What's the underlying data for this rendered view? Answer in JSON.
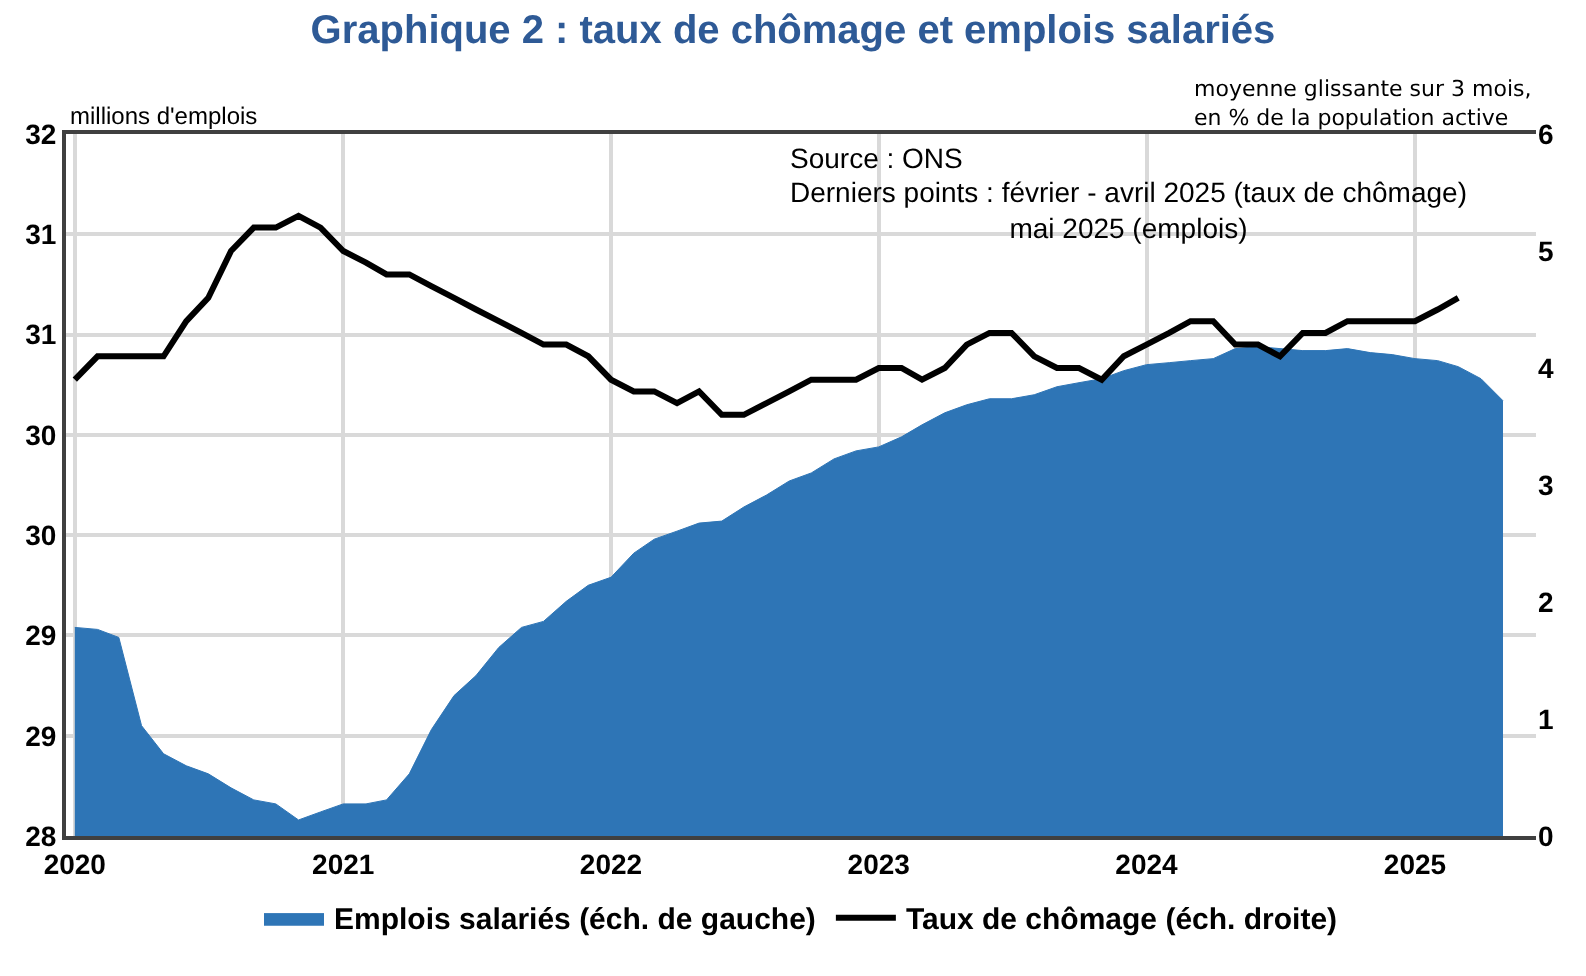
{
  "chart_data": {
    "type": "area",
    "title": "Graphique 2 : taux de chômage et emplois salariés",
    "ylabel": "millions d'emplois",
    "y2label": "moyenne glissante sur 3 mois,\nen % de la population active",
    "annotations": [
      "Source : ONS",
      "Derniers points : février - avril 2025 (taux de chômage)\nmai 2025 (emplois)"
    ],
    "x": [
      "2020-01",
      "2020-02",
      "2020-03",
      "2020-04",
      "2020-05",
      "2020-06",
      "2020-07",
      "2020-08",
      "2020-09",
      "2020-10",
      "2020-11",
      "2020-12",
      "2021-01",
      "2021-02",
      "2021-03",
      "2021-04",
      "2021-05",
      "2021-06",
      "2021-07",
      "2021-08",
      "2021-09",
      "2021-10",
      "2021-11",
      "2021-12",
      "2022-01",
      "2022-02",
      "2022-03",
      "2022-04",
      "2022-05",
      "2022-06",
      "2022-07",
      "2022-08",
      "2022-09",
      "2022-10",
      "2022-11",
      "2022-12",
      "2023-01",
      "2023-02",
      "2023-03",
      "2023-04",
      "2023-05",
      "2023-06",
      "2023-07",
      "2023-08",
      "2023-09",
      "2023-10",
      "2023-11",
      "2023-12",
      "2024-01",
      "2024-02",
      "2024-03",
      "2024-04",
      "2024-05",
      "2024-06",
      "2024-07",
      "2024-08",
      "2024-09",
      "2024-10",
      "2024-11",
      "2024-12",
      "2025-01",
      "2025-02",
      "2025-03",
      "2025-04",
      "2025-05"
    ],
    "series": [
      {
        "name": "Emplois salariés (éch. de gauche)",
        "color": "#2e75b6",
        "values": [
          29.04,
          29.03,
          28.99,
          28.55,
          28.41,
          28.35,
          28.31,
          28.24,
          28.18,
          28.16,
          28.08,
          28.12,
          28.16,
          28.16,
          28.18,
          28.31,
          28.53,
          28.7,
          28.8,
          28.94,
          29.04,
          29.07,
          29.17,
          29.25,
          29.29,
          29.41,
          29.48,
          29.52,
          29.56,
          29.57,
          29.64,
          29.7,
          29.77,
          29.81,
          29.88,
          29.92,
          29.94,
          29.99,
          30.05,
          30.11,
          30.15,
          30.18,
          30.18,
          30.2,
          30.24,
          30.26,
          30.28,
          30.32,
          30.35,
          30.36,
          30.37,
          30.38,
          30.43,
          30.44,
          30.43,
          30.42,
          30.42,
          30.43,
          30.41,
          30.4,
          30.38,
          30.37,
          30.34,
          30.28,
          30.17
        ]
      },
      {
        "name": "Taux de chômage (éch. droite)",
        "type": "line",
        "axis": "y2",
        "color": "#000000",
        "values": [
          3.9,
          4.1,
          4.1,
          4.1,
          4.1,
          4.4,
          4.6,
          5.0,
          5.2,
          5.2,
          5.3,
          5.2,
          5.0,
          4.9,
          4.8,
          4.8,
          4.7,
          4.6,
          4.5,
          4.4,
          4.3,
          4.2,
          4.2,
          4.1,
          3.9,
          3.8,
          3.8,
          3.7,
          3.8,
          3.6,
          3.6,
          3.7,
          3.8,
          3.9,
          3.9,
          3.9,
          4.0,
          4.0,
          3.9,
          4.0,
          4.2,
          4.3,
          4.3,
          4.1,
          4.0,
          4.0,
          3.9,
          4.1,
          4.2,
          4.3,
          4.4,
          4.4,
          4.2,
          4.2,
          4.1,
          4.3,
          4.3,
          4.4,
          4.4,
          4.4,
          4.4,
          4.5,
          4.6,
          null,
          null
        ]
      }
    ],
    "xlim": [
      "2019-12-20",
      "2025-06-15"
    ],
    "xticks": [
      "2020",
      "2021",
      "2022",
      "2023",
      "2024",
      "2025"
    ],
    "ylim": [
      28,
      31.5
    ],
    "yticks": [
      {
        "value": 28,
        "label": "28"
      },
      {
        "value": 28.5,
        "label": "29"
      },
      {
        "value": 29,
        "label": "29"
      },
      {
        "value": 29.5,
        "label": "30"
      },
      {
        "value": 30,
        "label": "30"
      },
      {
        "value": 30.5,
        "label": "31"
      },
      {
        "value": 31,
        "label": "31"
      },
      {
        "value": 31.5,
        "label": "32"
      }
    ],
    "y2lim": [
      0,
      6
    ],
    "y2ticks": [
      0,
      1,
      2,
      3,
      4,
      5,
      6
    ],
    "grid": true,
    "legend": "bottom",
    "line_style": "solid",
    "marker": "none"
  }
}
